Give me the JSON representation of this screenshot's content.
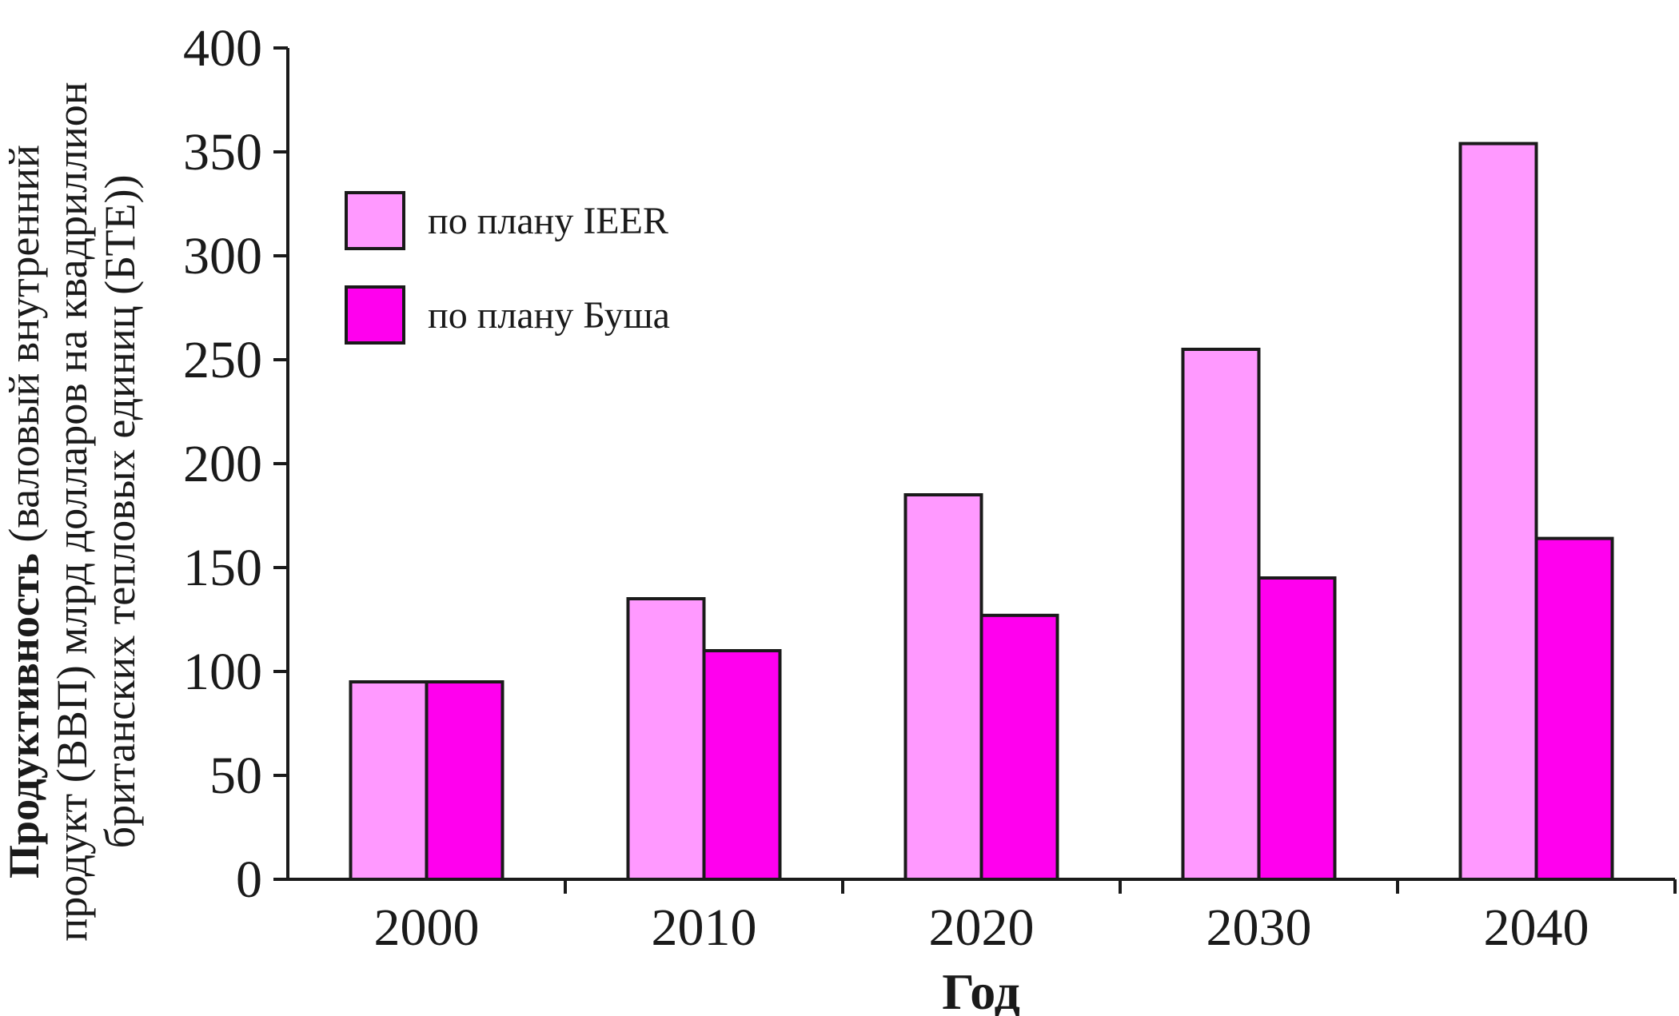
{
  "chart_data": {
    "type": "bar",
    "categories": [
      "2000",
      "2010",
      "2020",
      "2030",
      "2040"
    ],
    "series": [
      {
        "name": "по плану IEER",
        "values": [
          95,
          135,
          185,
          255,
          354
        ],
        "color": "#ff99ff"
      },
      {
        "name": "по плану Буша",
        "values": [
          95,
          110,
          127,
          145,
          164
        ],
        "color": "#ff00ee"
      }
    ],
    "ylim": [
      0,
      400
    ],
    "yticks": [
      "0",
      "50",
      "100",
      "150",
      "200",
      "250",
      "300",
      "350",
      "400"
    ],
    "xlabel": "Год",
    "ylabel": {
      "bold": "Продуктивность",
      "line1": " (валовый внутренний",
      "line2": "продукт (ВВП) млрд долларов на квадриллион",
      "line3": "британских  тепловых единиц (БТЕ))"
    },
    "legend_position": "top-left",
    "grid": false
  }
}
